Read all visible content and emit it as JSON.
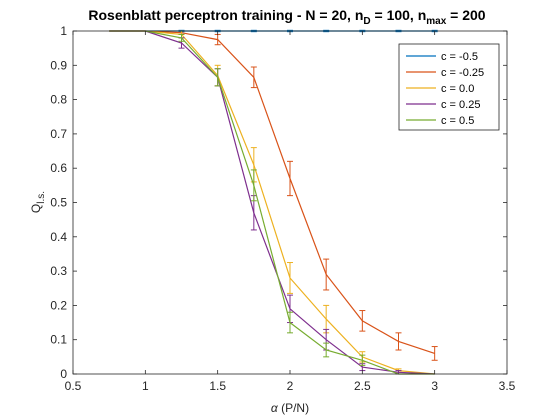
{
  "chart_data": {
    "type": "line",
    "title": {
      "main": "Rosenblatt perceptron training - N = 20, n",
      "sub1": "D",
      "mid": " = 100, n",
      "sub2": "max",
      "end": " = 200"
    },
    "xlabel": {
      "greek": "α",
      "rest": " (P/N)"
    },
    "ylabel": {
      "main": "Q",
      "sub": "l.s."
    },
    "xlim": [
      0.5,
      3.5
    ],
    "ylim": [
      0,
      1
    ],
    "xticks": [
      0.5,
      1,
      1.5,
      2,
      2.5,
      3,
      3.5
    ],
    "xtick_labels": [
      "0.5",
      "1",
      "1.5",
      "2",
      "2.5",
      "3",
      "3.5"
    ],
    "yticks": [
      0,
      0.1,
      0.2,
      0.3,
      0.4,
      0.5,
      0.6,
      0.7,
      0.8,
      0.9,
      1
    ],
    "ytick_labels": [
      "0",
      "0.1",
      "0.2",
      "0.3",
      "0.4",
      "0.5",
      "0.6",
      "0.7",
      "0.8",
      "0.9",
      "1"
    ],
    "grid": false,
    "legend_position": "top-right",
    "x": [
      0.75,
      1.0,
      1.25,
      1.5,
      1.75,
      2.0,
      2.25,
      2.5,
      2.75,
      3.0
    ],
    "series": [
      {
        "name": "c = -0.5",
        "color": "#0072BD",
        "values": [
          1,
          1,
          1,
          1,
          1,
          1,
          1,
          1,
          1,
          1
        ],
        "errors": [
          0,
          0,
          0.002,
          0.002,
          0.002,
          0.002,
          0.002,
          0.002,
          0.002,
          0.002
        ]
      },
      {
        "name": "c = -0.25",
        "color": "#D95319",
        "values": [
          1,
          1,
          0.995,
          0.975,
          0.865,
          0.57,
          0.29,
          0.155,
          0.095,
          0.06
        ],
        "errors": [
          0,
          0,
          0.005,
          0.015,
          0.03,
          0.05,
          0.045,
          0.03,
          0.025,
          0.02
        ]
      },
      {
        "name": "c = 0.0",
        "color": "#EDB120",
        "values": [
          1,
          1,
          0.99,
          0.87,
          0.61,
          0.28,
          0.16,
          0.05,
          0.01,
          0
        ],
        "errors": [
          0,
          0,
          0.01,
          0.03,
          0.05,
          0.045,
          0.04,
          0.015,
          0.005,
          0
        ]
      },
      {
        "name": "c = 0.25",
        "color": "#7E2F8E",
        "values": [
          1,
          1,
          0.965,
          0.865,
          0.47,
          0.19,
          0.1,
          0.02,
          0.005,
          0
        ],
        "errors": [
          0,
          0,
          0.015,
          0.025,
          0.05,
          0.04,
          0.03,
          0.01,
          0.005,
          0
        ]
      },
      {
        "name": "c = 0.5",
        "color": "#77AC30",
        "values": [
          1,
          1,
          0.98,
          0.865,
          0.55,
          0.15,
          0.07,
          0.04,
          0,
          0
        ],
        "errors": [
          0,
          0,
          0.01,
          0.025,
          0.045,
          0.03,
          0.02,
          0.015,
          0,
          0
        ]
      }
    ]
  }
}
